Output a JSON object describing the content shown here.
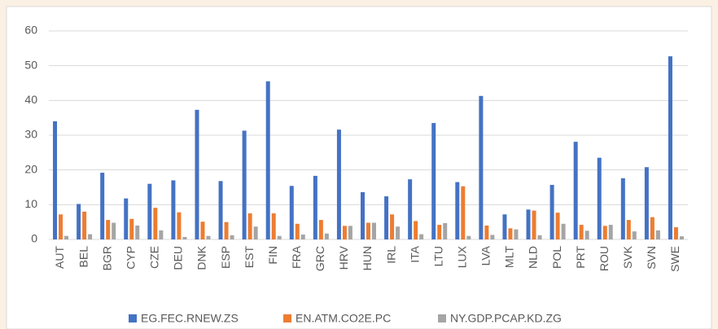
{
  "chart_data": {
    "type": "bar",
    "categories": [
      "AUT",
      "BEL",
      "BGR",
      "CYP",
      "CZE",
      "DEU",
      "DNK",
      "ESP",
      "EST",
      "FIN",
      "FRA",
      "GRC",
      "HRV",
      "HUN",
      "IRL",
      "ITA",
      "LTU",
      "LUX",
      "LVA",
      "MLT",
      "NLD",
      "POL",
      "PRT",
      "ROU",
      "SVK",
      "SVN",
      "SWE"
    ],
    "series": [
      {
        "name": "EG.FEC.RNEW.ZS",
        "color": "#4472c4",
        "values": [
          34,
          10.2,
          19.2,
          11.8,
          16,
          17,
          37.3,
          16.8,
          31.3,
          45.5,
          15.4,
          18.3,
          31.6,
          13.6,
          12.4,
          17.3,
          33.5,
          16.5,
          41.3,
          7.2,
          8.6,
          15.7,
          28.1,
          23.5,
          17.6,
          20.8,
          52.7
        ]
      },
      {
        "name": "EN.ATM.CO2E.PC",
        "color": "#ed7d31",
        "values": [
          7.2,
          8,
          5.6,
          5.9,
          9.1,
          7.8,
          5.1,
          5,
          7.5,
          7.5,
          4.5,
          5.6,
          3.9,
          4.8,
          7.2,
          5.3,
          4.2,
          15.3,
          4,
          3.2,
          8.3,
          7.7,
          4.2,
          3.9,
          5.6,
          6.4,
          3.5
        ]
      },
      {
        "name": "NY.GDP.PCAP.KD.ZG",
        "color": "#a5a5a5",
        "values": [
          1,
          1.5,
          4.8,
          4,
          2.6,
          0.7,
          1,
          1.2,
          3.7,
          1,
          1.4,
          1.7,
          3.9,
          4.8,
          3.7,
          1.5,
          4.7,
          1,
          1.3,
          2.9,
          1.2,
          4.5,
          2.5,
          4.2,
          2.3,
          2.6,
          0.9
        ]
      }
    ],
    "ylim": [
      0,
      60
    ],
    "yticks": [
      0,
      10,
      20,
      30,
      40,
      50,
      60
    ],
    "grid": true,
    "legend": "bottom"
  }
}
